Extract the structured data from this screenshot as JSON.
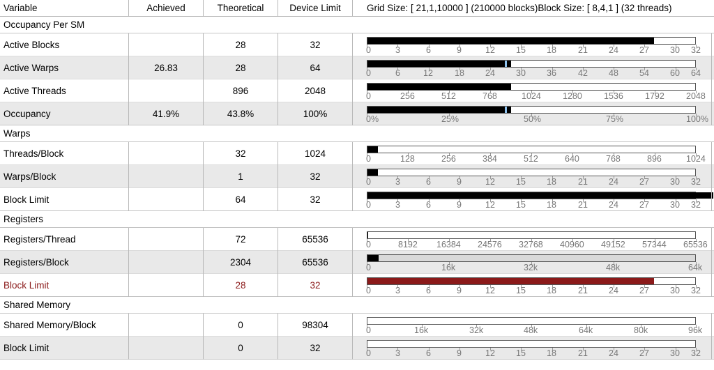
{
  "header": {
    "variable": "Variable",
    "achieved": "Achieved",
    "theoretical": "Theoretical",
    "device_limit": "Device Limit",
    "grid_info": "Grid Size: [ 21,1,10000 ] (210000 blocks)Block Size: [ 8,4,1 ] (32 threads)"
  },
  "colors": {
    "bar_fill": "#000000",
    "limit_bar_fill": "#8b1a1a",
    "achieved_marker": "#8fc3ef",
    "row_shade": "#e9e9e9"
  },
  "sections": [
    {
      "title": "Occupancy Per SM",
      "rows": [
        {
          "label": "Active Blocks",
          "achieved": "",
          "theoretical": "28",
          "limit": "32",
          "bar": {
            "fill": 0.875,
            "marker": null,
            "gray": false,
            "overflow": false,
            "red": false
          },
          "ticks": [
            "0",
            "3",
            "6",
            "9",
            "12",
            "15",
            "18",
            "21",
            "24",
            "27",
            "30",
            "32"
          ],
          "tick_max": 32,
          "tick_values": [
            0,
            3,
            6,
            9,
            12,
            15,
            18,
            21,
            24,
            27,
            30,
            32
          ]
        },
        {
          "label": "Active Warps",
          "achieved": "26.83",
          "theoretical": "28",
          "limit": "64",
          "bar": {
            "fill": 0.4375,
            "marker": 0.419,
            "gray": false,
            "overflow": false,
            "red": false
          },
          "ticks": [
            "0",
            "6",
            "12",
            "18",
            "24",
            "30",
            "36",
            "42",
            "48",
            "54",
            "60",
            "64"
          ],
          "tick_max": 64,
          "tick_values": [
            0,
            6,
            12,
            18,
            24,
            30,
            36,
            42,
            48,
            54,
            60,
            64
          ]
        },
        {
          "label": "Active Threads",
          "achieved": "",
          "theoretical": "896",
          "limit": "2048",
          "bar": {
            "fill": 0.4375,
            "marker": null,
            "gray": false,
            "overflow": false,
            "red": false
          },
          "ticks": [
            "0",
            "256",
            "512",
            "768",
            "1024",
            "1280",
            "1536",
            "1792",
            "2048"
          ],
          "tick_max": 2048,
          "tick_values": [
            0,
            256,
            512,
            768,
            1024,
            1280,
            1536,
            1792,
            2048
          ]
        },
        {
          "label": "Occupancy",
          "achieved": "41.9%",
          "theoretical": "43.8%",
          "limit": "100%",
          "bar": {
            "fill": 0.438,
            "marker": 0.419,
            "gray": false,
            "overflow": false,
            "red": false
          },
          "ticks": [
            "0%",
            "25%",
            "50%",
            "75%",
            "100%"
          ],
          "tick_max": 100,
          "tick_values": [
            0,
            25,
            50,
            75,
            100
          ]
        }
      ]
    },
    {
      "title": "Warps",
      "rows": [
        {
          "label": "Threads/Block",
          "achieved": "",
          "theoretical": "32",
          "limit": "1024",
          "bar": {
            "fill": 0.03125,
            "marker": null,
            "gray": false,
            "overflow": false,
            "red": false
          },
          "ticks": [
            "0",
            "128",
            "256",
            "384",
            "512",
            "640",
            "768",
            "896",
            "1024"
          ],
          "tick_max": 1024,
          "tick_values": [
            0,
            128,
            256,
            384,
            512,
            640,
            768,
            896,
            1024
          ]
        },
        {
          "label": "Warps/Block",
          "achieved": "",
          "theoretical": "1",
          "limit": "32",
          "bar": {
            "fill": 0.03125,
            "marker": null,
            "gray": false,
            "overflow": false,
            "red": false
          },
          "ticks": [
            "0",
            "3",
            "6",
            "9",
            "12",
            "15",
            "18",
            "21",
            "24",
            "27",
            "30",
            "32"
          ],
          "tick_max": 32,
          "tick_values": [
            0,
            3,
            6,
            9,
            12,
            15,
            18,
            21,
            24,
            27,
            30,
            32
          ]
        },
        {
          "label": "Block Limit",
          "achieved": "",
          "theoretical": "64",
          "limit": "32",
          "bar": {
            "fill": 1.0,
            "marker": null,
            "gray": false,
            "overflow": true,
            "red": false
          },
          "ticks": [
            "0",
            "3",
            "6",
            "9",
            "12",
            "15",
            "18",
            "21",
            "24",
            "27",
            "30",
            "32"
          ],
          "tick_max": 32,
          "tick_values": [
            0,
            3,
            6,
            9,
            12,
            15,
            18,
            21,
            24,
            27,
            30,
            32
          ]
        }
      ]
    },
    {
      "title": "Registers",
      "rows": [
        {
          "label": "Registers/Thread",
          "achieved": "",
          "theoretical": "72",
          "limit": "65536",
          "bar": {
            "fill": 0.0011,
            "marker": null,
            "gray": false,
            "overflow": false,
            "red": false
          },
          "ticks": [
            "0",
            "8192",
            "16384",
            "24576",
            "32768",
            "40960",
            "49152",
            "57344",
            "65536"
          ],
          "tick_max": 65536,
          "tick_values": [
            0,
            8192,
            16384,
            24576,
            32768,
            40960,
            49152,
            57344,
            65536
          ]
        },
        {
          "label": "Registers/Block",
          "achieved": "",
          "theoretical": "2304",
          "limit": "65536",
          "bar": {
            "fill": 0.035,
            "marker": null,
            "gray": true,
            "overflow": false,
            "red": false
          },
          "ticks": [
            "0",
            "16k",
            "32k",
            "48k",
            "64k"
          ],
          "tick_max": 64,
          "tick_values": [
            0,
            16,
            32,
            48,
            64
          ]
        },
        {
          "label": "Block Limit",
          "achieved": "",
          "theoretical": "28",
          "limit": "32",
          "bar": {
            "fill": 0.875,
            "marker": null,
            "gray": false,
            "overflow": false,
            "red": true
          },
          "ticks": [
            "0",
            "3",
            "6",
            "9",
            "12",
            "15",
            "18",
            "21",
            "24",
            "27",
            "30",
            "32"
          ],
          "tick_max": 32,
          "tick_values": [
            0,
            3,
            6,
            9,
            12,
            15,
            18,
            21,
            24,
            27,
            30,
            32
          ],
          "limiting": true
        }
      ]
    },
    {
      "title": "Shared Memory",
      "rows": [
        {
          "label": "Shared Memory/Block",
          "achieved": "",
          "theoretical": "0",
          "limit": "98304",
          "bar": {
            "fill": 0,
            "marker": null,
            "gray": false,
            "overflow": false,
            "red": false
          },
          "ticks": [
            "0",
            "16k",
            "32k",
            "48k",
            "64k",
            "80k",
            "96k"
          ],
          "tick_max": 96,
          "tick_values": [
            0,
            16,
            32,
            48,
            64,
            80,
            96
          ]
        },
        {
          "label": "Block Limit",
          "achieved": "",
          "theoretical": "0",
          "limit": "32",
          "bar": {
            "fill": 0,
            "marker": null,
            "gray": false,
            "overflow": false,
            "red": false
          },
          "ticks": [
            "0",
            "3",
            "6",
            "9",
            "12",
            "15",
            "18",
            "21",
            "24",
            "27",
            "30",
            "32"
          ],
          "tick_max": 32,
          "tick_values": [
            0,
            3,
            6,
            9,
            12,
            15,
            18,
            21,
            24,
            27,
            30,
            32
          ]
        }
      ]
    }
  ]
}
